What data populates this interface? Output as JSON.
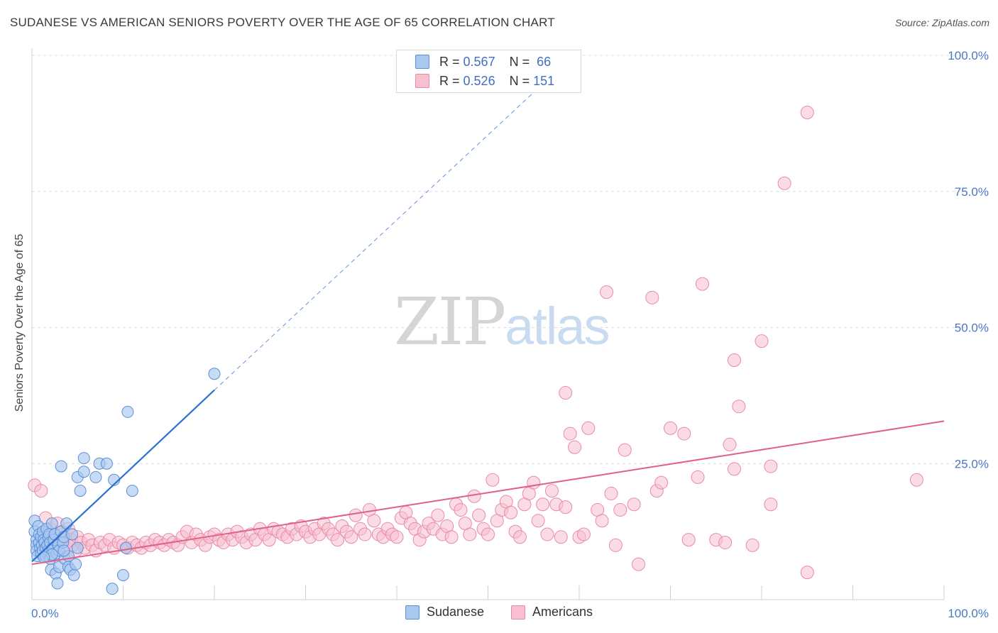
{
  "header": {
    "title": "SUDANESE VS AMERICAN SENIORS POVERTY OVER THE AGE OF 65 CORRELATION CHART",
    "source": "Source: ZipAtlas.com"
  },
  "watermark": {
    "zip": "ZIP",
    "atlas": "atlas"
  },
  "legend": {
    "rows": [
      {
        "r_label": "R =",
        "r_value": "0.567",
        "n_label": "N =",
        "n_value": "66"
      },
      {
        "r_label": "R =",
        "r_value": "0.526",
        "n_label": "N =",
        "n_value": "151"
      }
    ],
    "bottom": [
      "Sudanese",
      "Americans"
    ]
  },
  "colors": {
    "sudanese_fill": "#a9c8f0",
    "sudanese_stroke": "#5b8fd8",
    "sudanese_line": "#2a6fd4",
    "americans_fill": "#f7bfd0",
    "americans_stroke": "#e88aa8",
    "americans_line": "#e0608a",
    "axis_label": "#4a78c4"
  },
  "chart_data": {
    "type": "scatter",
    "title": "SUDANESE VS AMERICAN SENIORS POVERTY OVER THE AGE OF 65 CORRELATION CHART",
    "xlabel": "",
    "ylabel": "Seniors Poverty Over the Age of 65",
    "xlim": [
      0,
      100
    ],
    "ylim": [
      0,
      100
    ],
    "x_tick_labels": [
      "0.0%",
      "100.0%"
    ],
    "y_ticks": [
      25,
      50,
      75,
      100
    ],
    "y_tick_labels": [
      "25.0%",
      "50.0%",
      "75.0%",
      "100.0%"
    ],
    "grid": true,
    "legend_position": "top-center",
    "series": [
      {
        "name": "Sudanese",
        "R": 0.567,
        "N": 66,
        "trendline": {
          "x": [
            0,
            20
          ],
          "y": [
            7.0,
            38.5
          ],
          "dashed_extension_to": [
            60,
            101
          ]
        },
        "points": [
          {
            "x": 0.3,
            "y": 14.5
          },
          {
            "x": 0.3,
            "y": 12.5
          },
          {
            "x": 0.5,
            "y": 11
          },
          {
            "x": 0.5,
            "y": 10
          },
          {
            "x": 0.5,
            "y": 9
          },
          {
            "x": 0.6,
            "y": 8
          },
          {
            "x": 0.7,
            "y": 13.5
          },
          {
            "x": 0.8,
            "y": 12
          },
          {
            "x": 0.8,
            "y": 10.5
          },
          {
            "x": 0.9,
            "y": 9.5
          },
          {
            "x": 1,
            "y": 11.5
          },
          {
            "x": 1,
            "y": 8.5
          },
          {
            "x": 1.1,
            "y": 10
          },
          {
            "x": 1.2,
            "y": 12.5
          },
          {
            "x": 1.2,
            "y": 9
          },
          {
            "x": 1.3,
            "y": 11
          },
          {
            "x": 1.4,
            "y": 10.5
          },
          {
            "x": 1.5,
            "y": 9.5
          },
          {
            "x": 1.5,
            "y": 8
          },
          {
            "x": 1.6,
            "y": 13
          },
          {
            "x": 1.7,
            "y": 10
          },
          {
            "x": 1.8,
            "y": 11.5
          },
          {
            "x": 1.8,
            "y": 9
          },
          {
            "x": 1.9,
            "y": 12
          },
          {
            "x": 2,
            "y": 10.5
          },
          {
            "x": 2,
            "y": 7.5
          },
          {
            "x": 2.1,
            "y": 5.5
          },
          {
            "x": 2.2,
            "y": 14
          },
          {
            "x": 2.3,
            "y": 9.5
          },
          {
            "x": 2.4,
            "y": 11
          },
          {
            "x": 2.5,
            "y": 12
          },
          {
            "x": 2.6,
            "y": 4.8
          },
          {
            "x": 2.7,
            "y": 8.5
          },
          {
            "x": 2.8,
            "y": 3
          },
          {
            "x": 2.9,
            "y": 10
          },
          {
            "x": 3,
            "y": 6
          },
          {
            "x": 3,
            "y": 9
          },
          {
            "x": 3.2,
            "y": 12.5
          },
          {
            "x": 3.2,
            "y": 24.5
          },
          {
            "x": 3.4,
            "y": 10.5
          },
          {
            "x": 3.5,
            "y": 11.5
          },
          {
            "x": 3.6,
            "y": 7.5
          },
          {
            "x": 3.8,
            "y": 14
          },
          {
            "x": 4,
            "y": 8
          },
          {
            "x": 4,
            "y": 6
          },
          {
            "x": 4.2,
            "y": 5.5
          },
          {
            "x": 4.4,
            "y": 12
          },
          {
            "x": 4.6,
            "y": 4.5
          },
          {
            "x": 4.8,
            "y": 6.5
          },
          {
            "x": 5,
            "y": 9.5
          },
          {
            "x": 3.5,
            "y": 9
          },
          {
            "x": 2.2,
            "y": 8.3
          },
          {
            "x": 1.3,
            "y": 7.8
          },
          {
            "x": 5,
            "y": 22.5
          },
          {
            "x": 5.3,
            "y": 20
          },
          {
            "x": 5.7,
            "y": 26
          },
          {
            "x": 5.7,
            "y": 23.5
          },
          {
            "x": 7,
            "y": 22.5
          },
          {
            "x": 7.4,
            "y": 25
          },
          {
            "x": 8.8,
            "y": 2
          },
          {
            "x": 8.2,
            "y": 25
          },
          {
            "x": 9,
            "y": 22
          },
          {
            "x": 10,
            "y": 4.5
          },
          {
            "x": 10.5,
            "y": 34.5
          },
          {
            "x": 11,
            "y": 20
          },
          {
            "x": 10.3,
            "y": 9.5
          },
          {
            "x": 20,
            "y": 41.5
          }
        ]
      },
      {
        "name": "Americans",
        "R": 0.526,
        "N": 151,
        "trendline": {
          "x": [
            0,
            100
          ],
          "y": [
            6.5,
            32.8
          ]
        },
        "points": [
          {
            "x": 0.3,
            "y": 21
          },
          {
            "x": 1,
            "y": 20
          },
          {
            "x": 1.5,
            "y": 15
          },
          {
            "x": 2,
            "y": 13
          },
          {
            "x": 2.2,
            "y": 11
          },
          {
            "x": 2.5,
            "y": 12
          },
          {
            "x": 2.8,
            "y": 14
          },
          {
            "x": 3,
            "y": 10.5
          },
          {
            "x": 3.3,
            "y": 12.5
          },
          {
            "x": 3.5,
            "y": 11
          },
          {
            "x": 3.8,
            "y": 9.5
          },
          {
            "x": 4,
            "y": 13
          },
          {
            "x": 4.3,
            "y": 11
          },
          {
            "x": 4.5,
            "y": 10
          },
          {
            "x": 4.8,
            "y": 9
          },
          {
            "x": 5,
            "y": 11.5
          },
          {
            "x": 5.4,
            "y": 10.5
          },
          {
            "x": 5.8,
            "y": 9.5
          },
          {
            "x": 6.2,
            "y": 11
          },
          {
            "x": 6.6,
            "y": 10
          },
          {
            "x": 7,
            "y": 9
          },
          {
            "x": 7.5,
            "y": 10.5
          },
          {
            "x": 8,
            "y": 10
          },
          {
            "x": 8.5,
            "y": 11
          },
          {
            "x": 9,
            "y": 9.5
          },
          {
            "x": 9.5,
            "y": 10.5
          },
          {
            "x": 10,
            "y": 10
          },
          {
            "x": 10.5,
            "y": 9.5
          },
          {
            "x": 11,
            "y": 10.5
          },
          {
            "x": 11.5,
            "y": 10
          },
          {
            "x": 12,
            "y": 9.5
          },
          {
            "x": 12.5,
            "y": 10.5
          },
          {
            "x": 13,
            "y": 10
          },
          {
            "x": 13.5,
            "y": 11
          },
          {
            "x": 14,
            "y": 10.5
          },
          {
            "x": 14.5,
            "y": 10
          },
          {
            "x": 15,
            "y": 11
          },
          {
            "x": 15.5,
            "y": 10.5
          },
          {
            "x": 16,
            "y": 10
          },
          {
            "x": 16.5,
            "y": 11.5
          },
          {
            "x": 17,
            "y": 12.5
          },
          {
            "x": 17.5,
            "y": 10.5
          },
          {
            "x": 18,
            "y": 12
          },
          {
            "x": 18.5,
            "y": 11
          },
          {
            "x": 19,
            "y": 10
          },
          {
            "x": 19.5,
            "y": 11.5
          },
          {
            "x": 20,
            "y": 12
          },
          {
            "x": 20.5,
            "y": 11
          },
          {
            "x": 21,
            "y": 10.5
          },
          {
            "x": 21.5,
            "y": 12
          },
          {
            "x": 22,
            "y": 11
          },
          {
            "x": 22.5,
            "y": 12.5
          },
          {
            "x": 23,
            "y": 11.5
          },
          {
            "x": 23.5,
            "y": 10.5
          },
          {
            "x": 24,
            "y": 12
          },
          {
            "x": 24.5,
            "y": 11
          },
          {
            "x": 25,
            "y": 13
          },
          {
            "x": 25.5,
            "y": 12
          },
          {
            "x": 26,
            "y": 11
          },
          {
            "x": 26.5,
            "y": 13
          },
          {
            "x": 27,
            "y": 12.5
          },
          {
            "x": 27.5,
            "y": 12
          },
          {
            "x": 28,
            "y": 11.5
          },
          {
            "x": 28.5,
            "y": 13
          },
          {
            "x": 29,
            "y": 12
          },
          {
            "x": 29.5,
            "y": 13.5
          },
          {
            "x": 30,
            "y": 12.5
          },
          {
            "x": 30.5,
            "y": 11.5
          },
          {
            "x": 31,
            "y": 13
          },
          {
            "x": 31.5,
            "y": 12
          },
          {
            "x": 32,
            "y": 14
          },
          {
            "x": 32.5,
            "y": 13
          },
          {
            "x": 33,
            "y": 12
          },
          {
            "x": 33.5,
            "y": 11
          },
          {
            "x": 34,
            "y": 13.5
          },
          {
            "x": 34.5,
            "y": 12.5
          },
          {
            "x": 35,
            "y": 11.5
          },
          {
            "x": 35.5,
            "y": 15.5
          },
          {
            "x": 36,
            "y": 13
          },
          {
            "x": 36.5,
            "y": 12
          },
          {
            "x": 37,
            "y": 16.5
          },
          {
            "x": 37.5,
            "y": 14.5
          },
          {
            "x": 38,
            "y": 12
          },
          {
            "x": 38.5,
            "y": 11.5
          },
          {
            "x": 39,
            "y": 13
          },
          {
            "x": 39.5,
            "y": 12
          },
          {
            "x": 40,
            "y": 11.5
          },
          {
            "x": 40.5,
            "y": 15
          },
          {
            "x": 41,
            "y": 16
          },
          {
            "x": 41.5,
            "y": 14
          },
          {
            "x": 42,
            "y": 13
          },
          {
            "x": 42.5,
            "y": 11
          },
          {
            "x": 43,
            "y": 12.5
          },
          {
            "x": 43.5,
            "y": 14
          },
          {
            "x": 44,
            "y": 13
          },
          {
            "x": 44.5,
            "y": 15.5
          },
          {
            "x": 45,
            "y": 12
          },
          {
            "x": 45.5,
            "y": 13.5
          },
          {
            "x": 46,
            "y": 11.5
          },
          {
            "x": 46.5,
            "y": 17.5
          },
          {
            "x": 47,
            "y": 16.5
          },
          {
            "x": 47.5,
            "y": 14
          },
          {
            "x": 48,
            "y": 12
          },
          {
            "x": 48.5,
            "y": 19
          },
          {
            "x": 49,
            "y": 15.5
          },
          {
            "x": 49.5,
            "y": 13
          },
          {
            "x": 50,
            "y": 12
          },
          {
            "x": 50.5,
            "y": 22
          },
          {
            "x": 51,
            "y": 14.5
          },
          {
            "x": 51.5,
            "y": 16.5
          },
          {
            "x": 52,
            "y": 18
          },
          {
            "x": 52.5,
            "y": 16
          },
          {
            "x": 53,
            "y": 12.5
          },
          {
            "x": 53.5,
            "y": 11.5
          },
          {
            "x": 54,
            "y": 17.5
          },
          {
            "x": 54.5,
            "y": 19.5
          },
          {
            "x": 55,
            "y": 21.5
          },
          {
            "x": 55.5,
            "y": 14.5
          },
          {
            "x": 56,
            "y": 17.5
          },
          {
            "x": 56.5,
            "y": 12
          },
          {
            "x": 57,
            "y": 20
          },
          {
            "x": 57.5,
            "y": 17.5
          },
          {
            "x": 58,
            "y": 11.5
          },
          {
            "x": 58.5,
            "y": 17
          },
          {
            "x": 59,
            "y": 30.5
          },
          {
            "x": 58.5,
            "y": 38
          },
          {
            "x": 59.5,
            "y": 28
          },
          {
            "x": 60,
            "y": 11.5
          },
          {
            "x": 60.5,
            "y": 12
          },
          {
            "x": 61,
            "y": 31.5
          },
          {
            "x": 62,
            "y": 16.5
          },
          {
            "x": 62.5,
            "y": 14.5
          },
          {
            "x": 63,
            "y": 56.5
          },
          {
            "x": 63.5,
            "y": 19.5
          },
          {
            "x": 64,
            "y": 10
          },
          {
            "x": 64.5,
            "y": 16.5
          },
          {
            "x": 65,
            "y": 27.5
          },
          {
            "x": 66,
            "y": 17.5
          },
          {
            "x": 66.5,
            "y": 6.5
          },
          {
            "x": 68,
            "y": 55.5
          },
          {
            "x": 68.5,
            "y": 20
          },
          {
            "x": 69,
            "y": 21.5
          },
          {
            "x": 70,
            "y": 31.5
          },
          {
            "x": 71.5,
            "y": 30.5
          },
          {
            "x": 72,
            "y": 11
          },
          {
            "x": 73,
            "y": 22.5
          },
          {
            "x": 73.5,
            "y": 58
          },
          {
            "x": 75,
            "y": 11
          },
          {
            "x": 76,
            "y": 10.5
          },
          {
            "x": 76.5,
            "y": 28.5
          },
          {
            "x": 77,
            "y": 24
          },
          {
            "x": 77.5,
            "y": 35.5
          },
          {
            "x": 77,
            "y": 44
          },
          {
            "x": 79,
            "y": 10
          },
          {
            "x": 80,
            "y": 47.5
          },
          {
            "x": 81,
            "y": 17.5
          },
          {
            "x": 81,
            "y": 24.5
          },
          {
            "x": 82.5,
            "y": 76.5
          },
          {
            "x": 85,
            "y": 89.5
          },
          {
            "x": 85,
            "y": 5
          },
          {
            "x": 97,
            "y": 22
          }
        ]
      }
    ]
  }
}
